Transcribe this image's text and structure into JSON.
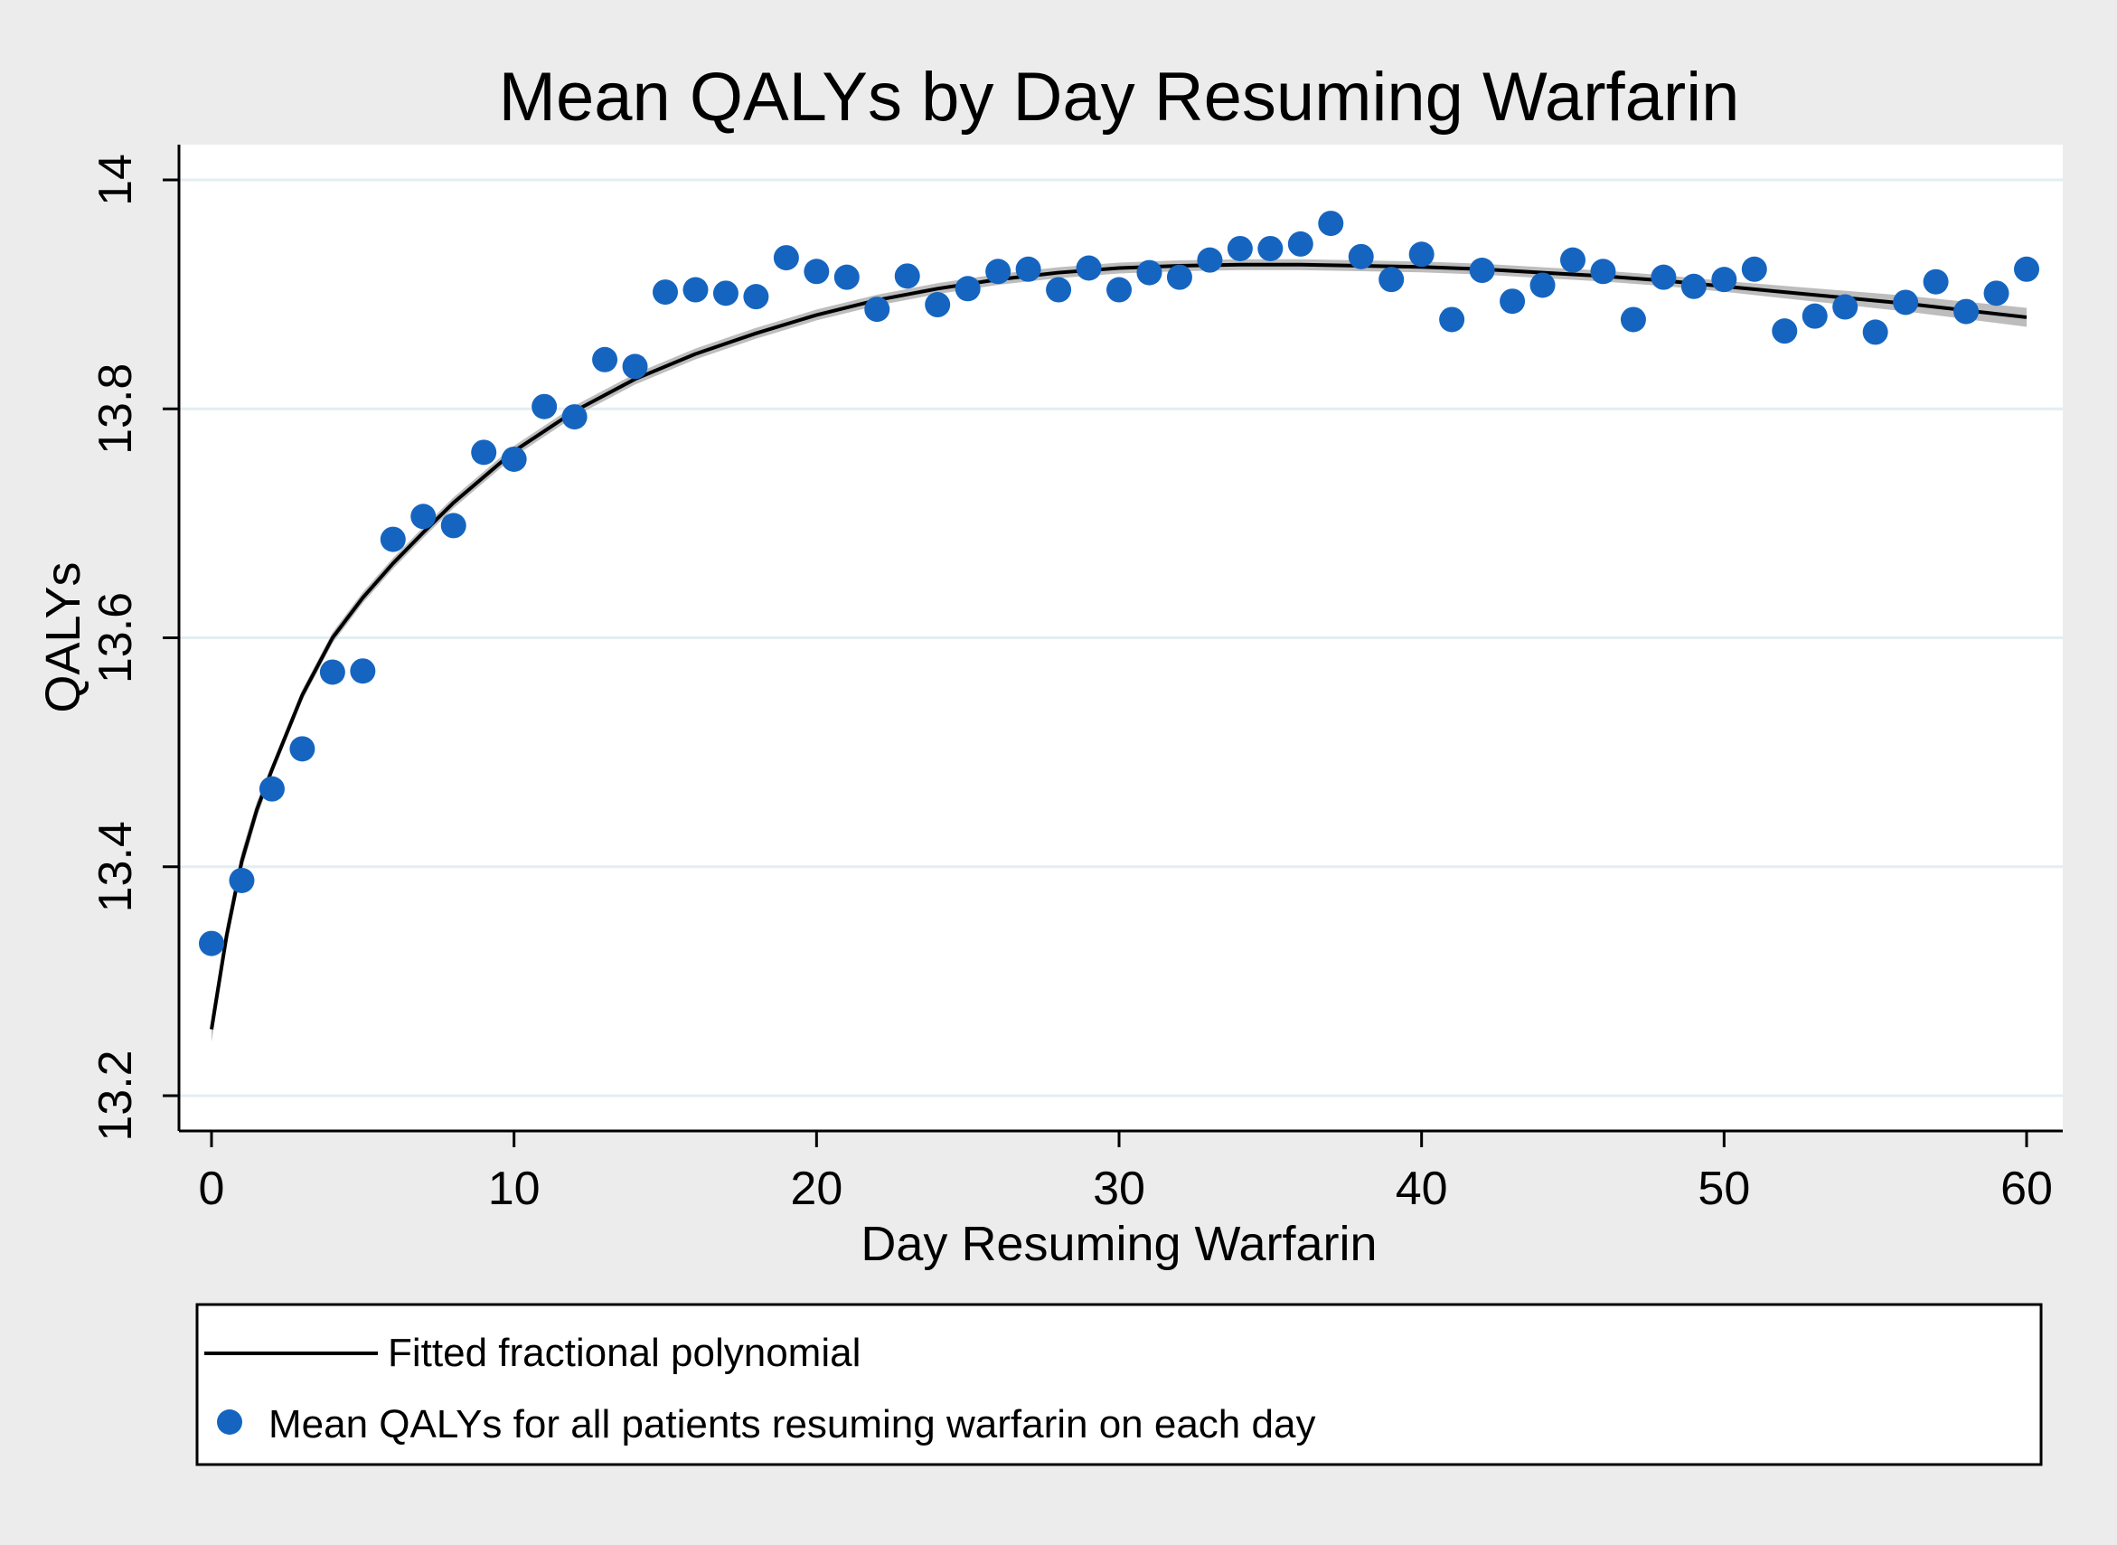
{
  "chart_data": {
    "type": "scatter",
    "title": "Mean QALYs by Day Resuming Warfarin",
    "xlabel": "Day Resuming Warfarin",
    "ylabel": "QALYs",
    "xlim": [
      0,
      60
    ],
    "ylim": [
      13.2,
      14.0
    ],
    "xticks": [
      0,
      10,
      20,
      30,
      40,
      50,
      60
    ],
    "yticks": [
      13.2,
      13.4,
      13.6,
      13.8,
      14.0
    ],
    "xtick_labels": [
      "0",
      "10",
      "20",
      "30",
      "40",
      "50",
      "60"
    ],
    "ytick_labels": [
      "13.2",
      "13.4",
      "13.6",
      "13.8",
      "14"
    ],
    "grid": true,
    "legend_position": "bottom",
    "colors": {
      "points": "#1565c0",
      "fit_line": "#000000",
      "ci_band": "#bdbdbd",
      "plot_bg": "#ffffff",
      "page_bg": "#ececec",
      "grid": "#e3eef0"
    },
    "series": [
      {
        "name": "Fitted fractional polynomial",
        "kind": "line",
        "x": [
          0,
          0.5,
          1,
          1.5,
          2,
          3,
          4,
          5,
          6,
          7,
          8,
          10,
          12,
          14,
          16,
          18,
          20,
          22,
          24,
          26,
          28,
          30,
          32,
          34,
          36,
          38,
          40,
          42,
          44,
          46,
          48,
          50,
          52,
          54,
          56,
          58,
          60
        ],
        "y": [
          13.258,
          13.34,
          13.405,
          13.45,
          13.485,
          13.55,
          13.6,
          13.635,
          13.665,
          13.692,
          13.718,
          13.763,
          13.798,
          13.826,
          13.848,
          13.866,
          13.882,
          13.895,
          13.905,
          13.913,
          13.919,
          13.923,
          13.925,
          13.926,
          13.926,
          13.925,
          13.924,
          13.922,
          13.919,
          13.916,
          13.912,
          13.907,
          13.902,
          13.897,
          13.892,
          13.886,
          13.88
        ]
      },
      {
        "name": "Mean QALYs for all patients resuming warfarin on each day",
        "kind": "scatter",
        "x": [
          0,
          1,
          2,
          3,
          4,
          5,
          6,
          7,
          8,
          9,
          10,
          11,
          12,
          13,
          14,
          15,
          16,
          17,
          18,
          19,
          20,
          21,
          22,
          23,
          24,
          25,
          26,
          27,
          28,
          29,
          30,
          31,
          32,
          33,
          34,
          35,
          36,
          37,
          38,
          39,
          40,
          41,
          42,
          43,
          44,
          45,
          46,
          47,
          48,
          49,
          50,
          51,
          52,
          53,
          54,
          55,
          56,
          57,
          58,
          59,
          60
        ],
        "y": [
          13.333,
          13.388,
          13.468,
          13.503,
          13.57,
          13.571,
          13.686,
          13.706,
          13.698,
          13.762,
          13.756,
          13.802,
          13.793,
          13.843,
          13.837,
          13.902,
          13.904,
          13.901,
          13.898,
          13.932,
          13.92,
          13.915,
          13.887,
          13.916,
          13.891,
          13.905,
          13.92,
          13.922,
          13.904,
          13.923,
          13.904,
          13.919,
          13.915,
          13.93,
          13.94,
          13.94,
          13.944,
          13.962,
          13.933,
          13.913,
          13.935,
          13.878,
          13.921,
          13.894,
          13.908,
          13.93,
          13.92,
          13.878,
          13.915,
          13.907,
          13.913,
          13.922,
          13.868,
          13.881,
          13.889,
          13.867,
          13.893,
          13.911,
          13.885,
          13.901,
          13.922
        ]
      }
    ]
  }
}
